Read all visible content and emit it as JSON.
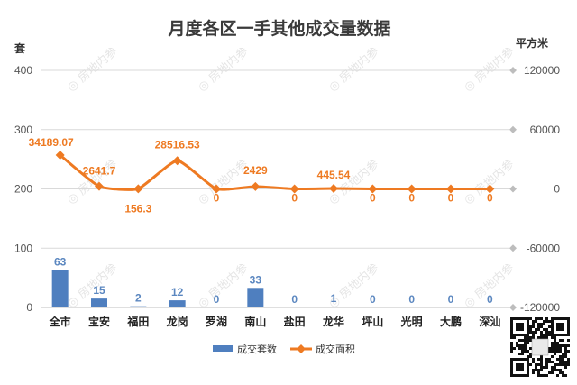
{
  "chart_data": {
    "type": "bar+line",
    "title": "月度各区一手其他成交量数据",
    "left_axis_unit": "套",
    "right_axis_unit": "平方米",
    "categories": [
      "全市",
      "宝安",
      "福田",
      "龙岗",
      "罗湖",
      "南山",
      "盐田",
      "龙华",
      "坪山",
      "光明",
      "大鹏",
      "深汕"
    ],
    "series": [
      {
        "name": "成交套数",
        "type": "bar",
        "axis": "left",
        "color": "#4f7fbf",
        "values": [
          63,
          15,
          2,
          12,
          0,
          33,
          0,
          1,
          0,
          0,
          0,
          0
        ],
        "labels": [
          "63",
          "15",
          "2",
          "12",
          "0",
          "33",
          "0",
          "1",
          "0",
          "0",
          "0",
          "0"
        ]
      },
      {
        "name": "成交面积",
        "type": "line",
        "axis": "right",
        "color": "#ee7a22",
        "values": [
          34189.07,
          2641.7,
          156.3,
          28516.53,
          0,
          2429,
          0,
          445.54,
          0,
          0,
          0,
          0
        ],
        "labels": [
          "34189.07",
          "2641.7",
          "156.3",
          "28516.53",
          "0",
          "2429",
          "0",
          "445.54",
          "0",
          "0",
          "0",
          "0"
        ]
      }
    ],
    "left_ylim": [
      0,
      400
    ],
    "left_ticks": [
      0,
      100,
      200,
      300,
      400
    ],
    "right_ylim": [
      -120000,
      120000
    ],
    "right_ticks": [
      -120000,
      -60000,
      0,
      60000,
      120000
    ],
    "right_tick_labels": [
      "-120000",
      "-60000",
      "0",
      "60000",
      "120000"
    ],
    "grid": true,
    "legend_position": "bottom"
  },
  "watermark_text": "房地内参"
}
